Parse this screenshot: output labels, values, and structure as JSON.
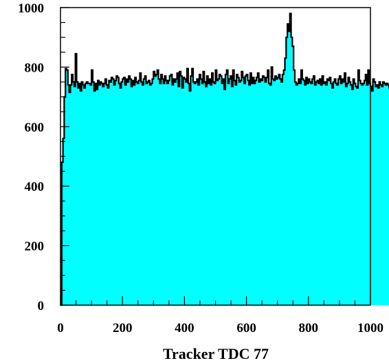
{
  "chart_data": {
    "type": "bar",
    "title": "",
    "xlabel": "Tracker TDC 77",
    "ylabel": "",
    "xlim": [
      0,
      1000
    ],
    "ylim": [
      0,
      1000
    ],
    "x_ticks": [
      0,
      200,
      400,
      600,
      800,
      1000
    ],
    "y_ticks": [
      0,
      200,
      400,
      600,
      800,
      1000
    ],
    "x_tick_labels": [
      "0",
      "200",
      "400",
      "600",
      "800",
      "1000"
    ],
    "y_tick_labels": [
      "0",
      "200",
      "400",
      "600",
      "800",
      "1000"
    ],
    "fill_color": "#00ffff",
    "line_color": "#000000",
    "bin_width": 4,
    "grid": false,
    "series": [
      {
        "values": [
          0,
          480,
          560,
          700,
          795,
          790,
          740,
          715,
          740,
          775,
          750,
          735,
          845,
          750,
          730,
          745,
          720,
          750,
          740,
          730,
          745,
          750,
          745,
          745,
          740,
          790,
          750,
          720,
          745,
          725,
          755,
          740,
          750,
          745,
          735,
          745,
          760,
          740,
          730,
          755,
          750,
          765,
          760,
          740,
          755,
          770,
          765,
          745,
          730,
          750,
          760,
          765,
          740,
          760,
          750,
          770,
          760,
          735,
          755,
          740,
          765,
          750,
          745,
          755,
          780,
          750,
          740,
          760,
          770,
          745,
          750,
          755,
          740,
          745,
          760,
          785,
          770,
          775,
          790,
          760,
          745,
          775,
          760,
          745,
          770,
          755,
          745,
          755,
          770,
          775,
          740,
          760,
          750,
          760,
          780,
          735,
          785,
          770,
          730,
          765,
          760,
          750,
          795,
          745,
          720,
          770,
          795,
          750,
          745,
          750,
          760,
          740,
          775,
          760,
          745,
          785,
          750,
          735,
          770,
          745,
          760,
          740,
          780,
          750,
          745,
          790,
          755,
          760,
          775,
          770,
          745,
          760,
          725,
          775,
          790,
          745,
          760,
          770,
          735,
          790,
          755,
          740,
          775,
          765,
          750,
          755,
          785,
          765,
          745,
          770,
          775,
          755,
          740,
          780,
          745,
          765,
          745,
          755,
          765,
          780,
          750,
          760,
          755,
          770,
          765,
          750,
          765,
          790,
          745,
          740,
          800,
          760,
          755,
          770,
          760,
          765,
          775,
          760,
          750,
          775,
          790,
          830,
          900,
          945,
          920,
          980,
          900,
          870,
          790,
          750,
          740,
          745,
          760,
          745,
          790,
          760,
          755,
          740,
          765,
          745,
          760,
          750,
          745,
          760,
          770,
          740,
          750,
          755,
          745,
          760,
          740,
          770,
          745,
          750,
          740,
          760,
          755,
          765,
          745,
          730,
          750,
          760,
          745,
          740,
          760,
          770,
          745,
          760,
          750,
          780,
          735,
          745,
          765,
          750,
          740,
          725,
          760,
          745,
          735,
          730,
          790,
          755,
          745,
          740,
          745,
          755,
          775,
          740,
          790,
          745,
          735,
          720,
          760,
          750,
          735,
          740,
          730,
          750,
          740,
          735,
          750,
          745,
          740,
          745,
          740,
          730,
          745,
          760,
          740,
          750,
          720,
          745,
          735,
          745,
          725,
          760,
          745,
          740,
          745,
          730
        ]
      }
    ]
  }
}
